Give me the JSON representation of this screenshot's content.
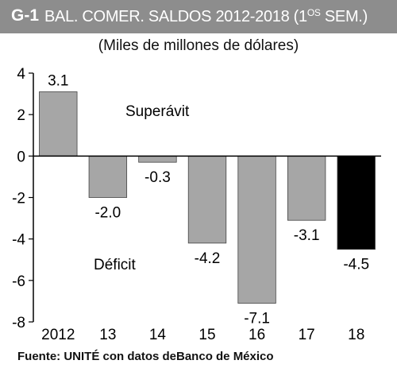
{
  "header": {
    "code": "G-1",
    "title": "BAL. COMER. SALDOS 2012-2018 (1",
    "title_sup": "OS",
    "title_end": " SEM.)",
    "background": "#8d8d8d"
  },
  "subtitle": "(Miles de millones de dólares)",
  "source": "Fuente: UNITÉ con datos deBanco de México",
  "chart_data": {
    "type": "bar",
    "categories": [
      "2012",
      "13",
      "14",
      "15",
      "16",
      "17",
      "18"
    ],
    "values": [
      3.1,
      -2.0,
      -0.3,
      -4.2,
      -7.1,
      -3.1,
      -4.5
    ],
    "value_labels": [
      "3.1",
      "-2.0",
      "-0.3",
      "-4.2",
      "-7.1",
      "-3.1",
      "-4.5"
    ],
    "ylim": [
      -8,
      4
    ],
    "yticks": [
      4,
      2,
      0,
      -2,
      -4,
      -6,
      -8
    ],
    "ytick_labels": [
      "4",
      "2",
      "0",
      "-2",
      "-4",
      "-6",
      "-8"
    ],
    "annotations": [
      "Superávit",
      "Déficit"
    ],
    "bar_colors": [
      "#a6a6a6",
      "#a6a6a6",
      "#a6a6a6",
      "#a6a6a6",
      "#a6a6a6",
      "#a6a6a6",
      "#000000"
    ],
    "grid": false,
    "legend": "none"
  }
}
